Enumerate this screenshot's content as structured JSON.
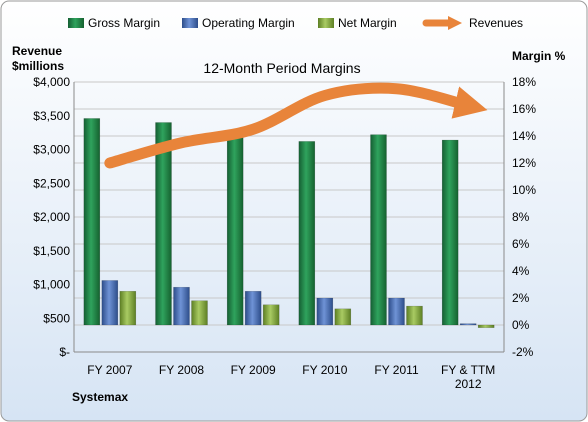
{
  "chart_data": {
    "type": "bar",
    "title": "12-Month Period Margins",
    "company": "Systemax",
    "left_axis_label": [
      "Revenue",
      "$millions"
    ],
    "right_axis_label": "Margin %",
    "categories": [
      "FY 2007",
      "FY 2008",
      "FY 2009",
      "FY 2010",
      "FY 2011",
      "FY & TTM 2012"
    ],
    "category_lines": [
      [
        "FY 2007"
      ],
      [
        "FY 2008"
      ],
      [
        "FY 2009"
      ],
      [
        "FY 2010"
      ],
      [
        "FY 2011"
      ],
      [
        "FY & TTM",
        "2012"
      ]
    ],
    "left_ticks": [
      "$-",
      "$500",
      "$1,000",
      "$1,500",
      "$2,000",
      "$2,500",
      "$3,000",
      "$3,500",
      "$4,000"
    ],
    "right_ticks": [
      "-2%",
      "0%",
      "2%",
      "4%",
      "6%",
      "8%",
      "10%",
      "12%",
      "14%",
      "16%",
      "18%"
    ],
    "ylim_margin": [
      -2,
      18
    ],
    "ylim_revenue": [
      0,
      4000
    ],
    "series": [
      {
        "name": "Gross Margin",
        "axis": "right",
        "type": "bar",
        "color": "#1e8a4a",
        "values": [
          15.3,
          15.0,
          14.0,
          13.6,
          14.1,
          13.7
        ]
      },
      {
        "name": "Operating Margin",
        "axis": "right",
        "type": "bar",
        "color": "#4a6fb5",
        "values": [
          3.3,
          2.8,
          2.5,
          2.0,
          2.0,
          0.1
        ]
      },
      {
        "name": "Net Margin",
        "axis": "right",
        "type": "bar",
        "color": "#8ab04a",
        "values": [
          2.5,
          1.8,
          1.5,
          1.2,
          1.4,
          -0.2
        ]
      },
      {
        "name": "Revenues",
        "axis": "left",
        "type": "line",
        "color": "#e8843a",
        "values": [
          2800,
          3100,
          3300,
          3800,
          3900,
          3650
        ]
      }
    ],
    "grid": true,
    "legend": "top"
  }
}
